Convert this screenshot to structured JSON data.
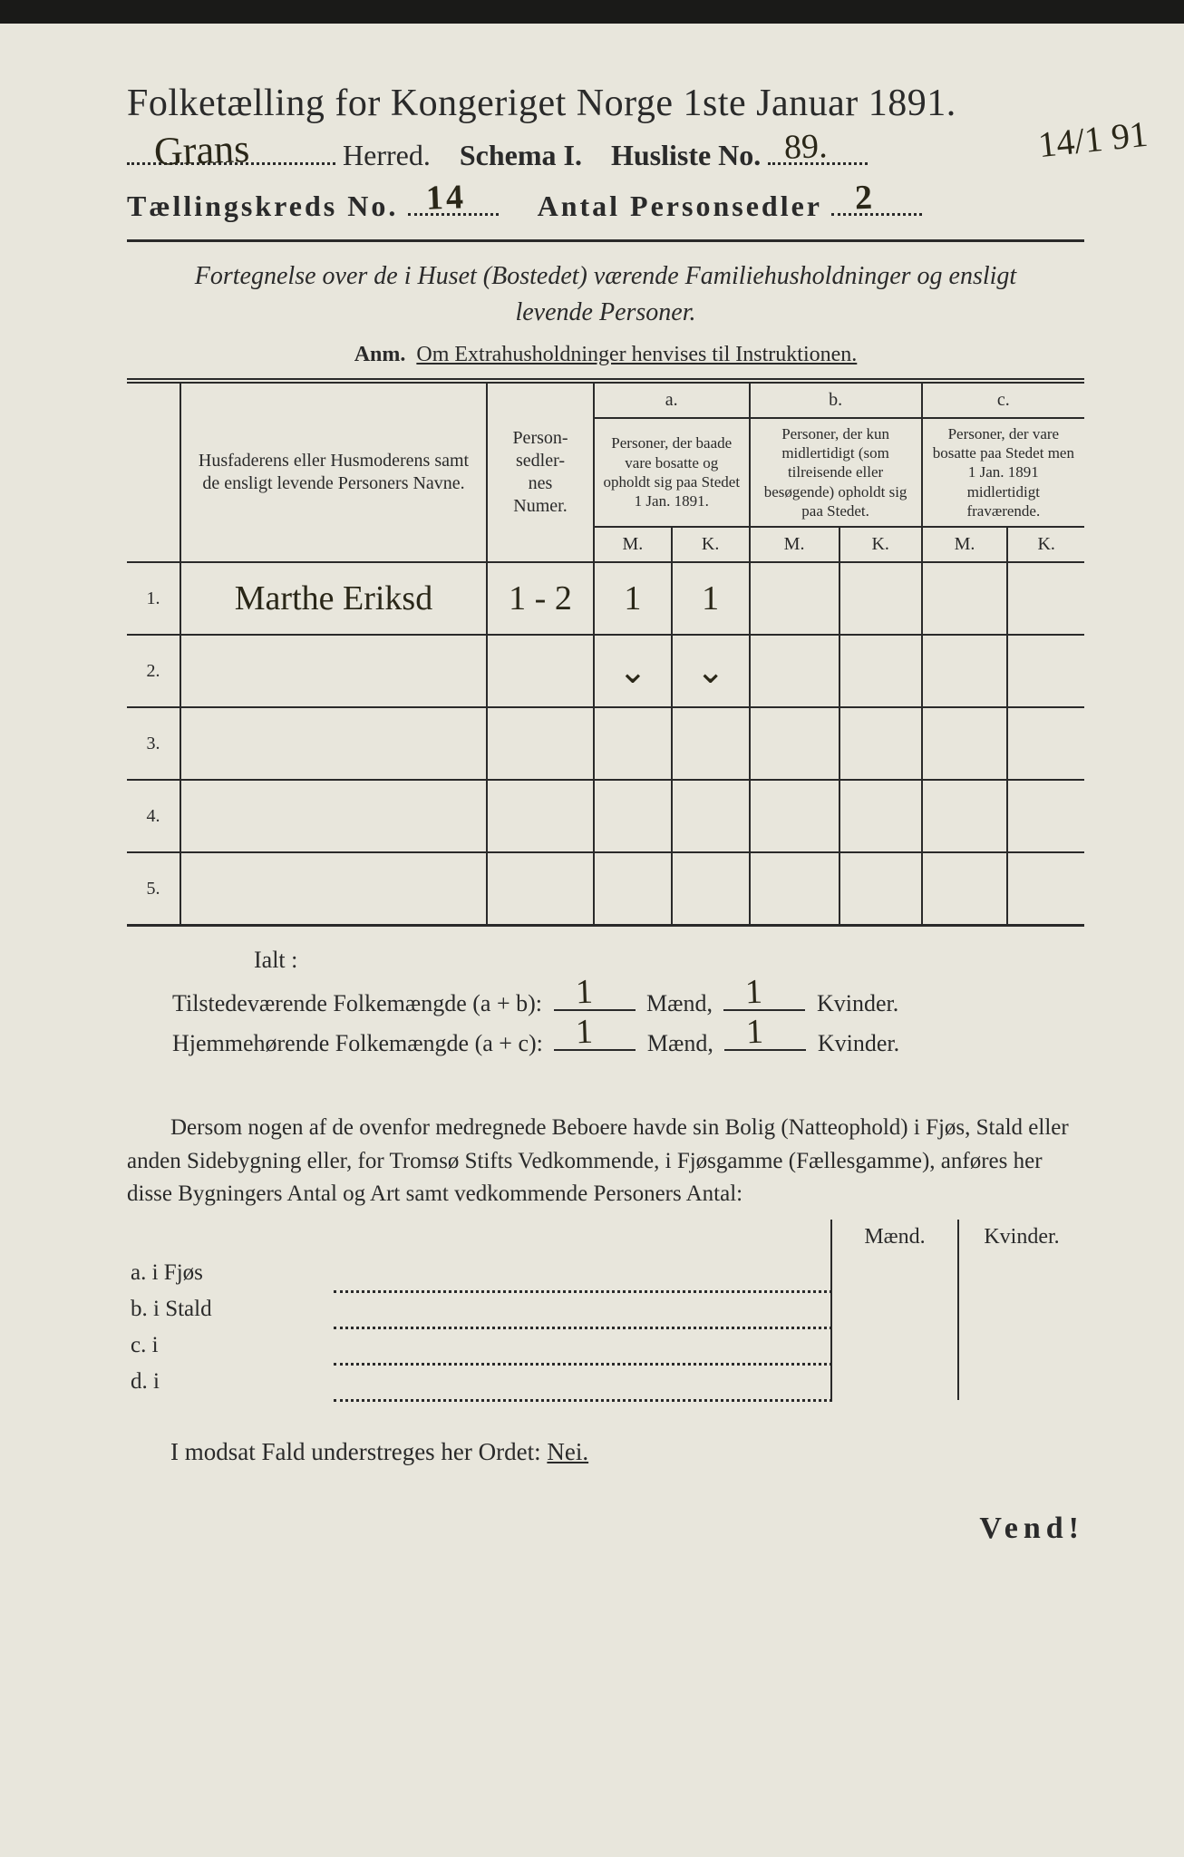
{
  "colors": {
    "paper": "#e8e6dc",
    "ink": "#2a2a2a",
    "handwriting": "#2a2718",
    "scan_border": "#1a1a18"
  },
  "typography": {
    "title_fontsize_pt": 32,
    "body_fontsize_pt": 19,
    "handwriting_family": "cursive"
  },
  "header": {
    "title": "Folketælling for Kongeriget Norge 1ste Januar 1891.",
    "herred_value": "Grans",
    "herred_label": "Herred.",
    "schema_label": "Schema I.",
    "husliste_label": "Husliste No.",
    "husliste_value": "89.",
    "margin_note": "14/1 91",
    "kreds_label": "Tællingskreds No.",
    "kreds_value": "14",
    "antal_label": "Antal Personsedler",
    "antal_value": "2"
  },
  "subtitle": {
    "line1": "Fortegnelse over de i Huset (Bostedet) værende Familiehusholdninger og ensligt",
    "line2": "levende Personer.",
    "anm_bold": "Anm.",
    "anm_text": "Om Extrahusholdninger henvises til Instruktionen."
  },
  "table": {
    "col_name": "Husfaderens eller Husmoderens samt de ensligt levende Personers Navne.",
    "col_numer": "Person-\nsedler-\nnes\nNumer.",
    "group_a_label": "a.",
    "group_a_text": "Personer, der baade vare bosatte og opholdt sig paa Stedet 1 Jan. 1891.",
    "group_b_label": "b.",
    "group_b_text": "Personer, der kun midlertidigt (som tilreisende eller besøgende) opholdt sig paa Stedet.",
    "group_c_label": "c.",
    "group_c_text": "Personer, der vare bosatte paa Stedet men 1 Jan. 1891 midlertidigt fraværende.",
    "m": "M.",
    "k": "K.",
    "rows": [
      {
        "num": "1.",
        "name": "Marthe Eriksd",
        "sedler": "1 - 2",
        "a_m": "1",
        "a_k": "1",
        "b_m": "",
        "b_k": "",
        "c_m": "",
        "c_k": ""
      },
      {
        "num": "2.",
        "name": "",
        "sedler": "",
        "a_m": "⌄",
        "a_k": "⌄",
        "b_m": "",
        "b_k": "",
        "c_m": "",
        "c_k": ""
      },
      {
        "num": "3.",
        "name": "",
        "sedler": "",
        "a_m": "",
        "a_k": "",
        "b_m": "",
        "b_k": "",
        "c_m": "",
        "c_k": ""
      },
      {
        "num": "4.",
        "name": "",
        "sedler": "",
        "a_m": "",
        "a_k": "",
        "b_m": "",
        "b_k": "",
        "c_m": "",
        "c_k": ""
      },
      {
        "num": "5.",
        "name": "",
        "sedler": "",
        "a_m": "",
        "a_k": "",
        "b_m": "",
        "b_k": "",
        "c_m": "",
        "c_k": ""
      }
    ]
  },
  "totals": {
    "ialt": "Ialt :",
    "line1_label": "Tilstedeværende Folkemængde (a + b):",
    "line2_label": "Hjemmehørende Folkemængde (a + c):",
    "maend": "Mænd,",
    "kvinder": "Kvinder.",
    "l1_m": "1",
    "l1_k": "1",
    "l2_m": "1",
    "l2_k": "1"
  },
  "bolig": {
    "para": "Dersom nogen af de ovenfor medregnede Beboere havde sin Bolig (Natteophold) i Fjøs, Stald eller anden Sidebygning eller, for Tromsø Stifts Vedkommende, i Fjøsgamme (Fællesgamme), anføres her disse Bygningers Antal og Art samt vedkommende Personers Antal:",
    "h_maend": "Mænd.",
    "h_kvinder": "Kvinder.",
    "rows": [
      {
        "lead": "a.  i      Fjøs"
      },
      {
        "lead": "b.  i      Stald"
      },
      {
        "lead": "c.  i"
      },
      {
        "lead": "d.  i"
      }
    ],
    "nei_line_pre": "I modsat Fald understreges her Ordet: ",
    "nei_word": "Nei."
  },
  "footer": {
    "vend": "Vend!"
  }
}
